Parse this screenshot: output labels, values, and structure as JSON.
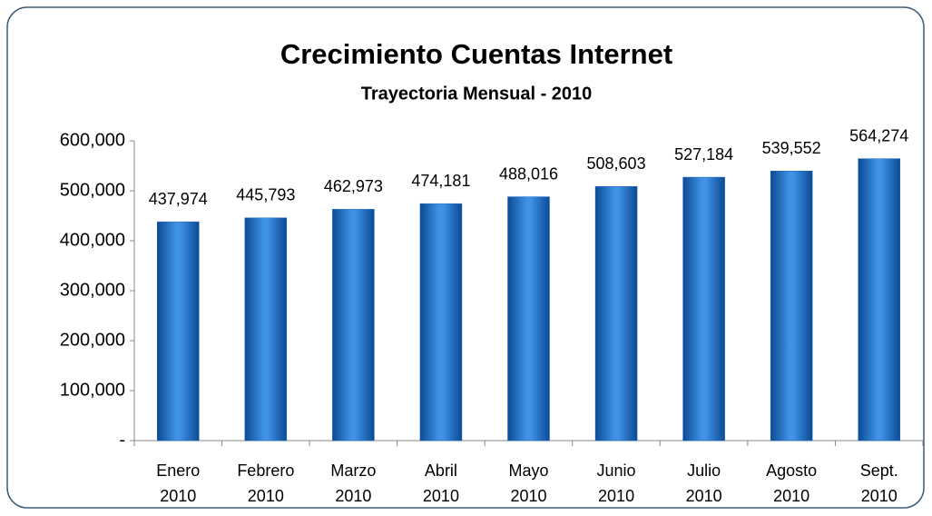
{
  "chart_data": {
    "type": "bar",
    "title": "Crecimiento Cuentas Internet",
    "subtitle": "Trayectoria Mensual - 2010",
    "categories": [
      "Enero 2010",
      "Febrero 2010",
      "Marzo 2010",
      "Abril 2010",
      "Mayo 2010",
      "Junio 2010",
      "Julio 2010",
      "Agosto 2010",
      "Sept. 2010"
    ],
    "values": [
      437974,
      445793,
      462973,
      474181,
      488016,
      508603,
      527184,
      539552,
      564274
    ],
    "value_labels": [
      "437,974",
      "445,793",
      "462,973",
      "474,181",
      "488,016",
      "508,603",
      "527,184",
      "539,552",
      "564,274"
    ],
    "color": "#1a66bf",
    "ylim": [
      0,
      600000
    ],
    "yticks": [
      {
        "value": 0,
        "label": "-"
      },
      {
        "value": 100000,
        "label": "100,000"
      },
      {
        "value": 200000,
        "label": "200,000"
      },
      {
        "value": 300000,
        "label": "300,000"
      },
      {
        "value": 400000,
        "label": "400,000"
      },
      {
        "value": 500000,
        "label": "500,000"
      },
      {
        "value": 600000,
        "label": "600,000"
      }
    ],
    "grid": false
  }
}
